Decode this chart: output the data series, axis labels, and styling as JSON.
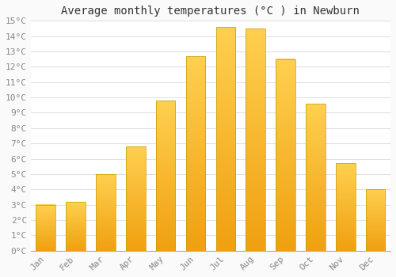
{
  "title": "Average monthly temperatures (°C ) in Newburn",
  "months": [
    "Jan",
    "Feb",
    "Mar",
    "Apr",
    "May",
    "Jun",
    "Jul",
    "Aug",
    "Sep",
    "Oct",
    "Nov",
    "Dec"
  ],
  "values": [
    3.0,
    3.2,
    5.0,
    6.8,
    9.8,
    12.7,
    14.6,
    14.5,
    12.5,
    9.6,
    5.7,
    4.0
  ],
  "bar_color_light": "#FFD050",
  "bar_color_dark": "#F0A010",
  "bar_color_mid": "#FFC030",
  "background_color": "#FAFAFA",
  "plot_bg_color": "#FFFFFF",
  "grid_color": "#E0E0E8",
  "ylim": [
    0,
    15
  ],
  "yticks": [
    0,
    1,
    2,
    3,
    4,
    5,
    6,
    7,
    8,
    9,
    10,
    11,
    12,
    13,
    14,
    15
  ],
  "title_fontsize": 10,
  "tick_fontsize": 8,
  "font_family": "monospace"
}
